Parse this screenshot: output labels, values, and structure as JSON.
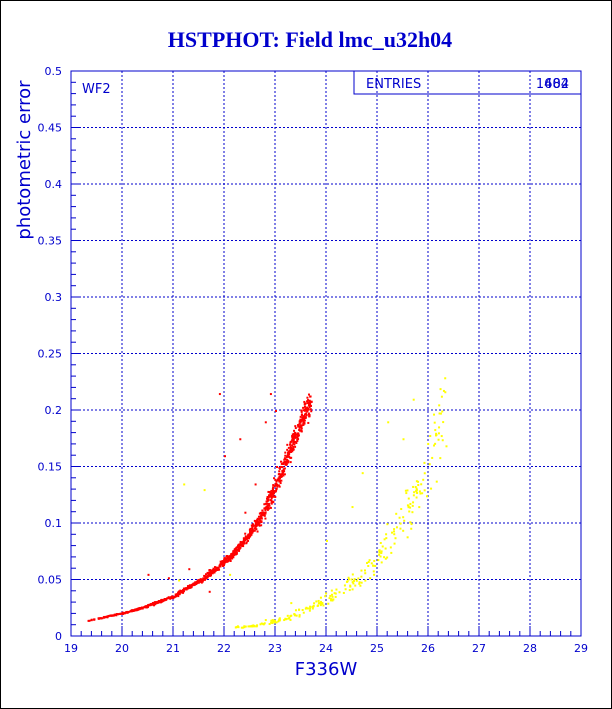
{
  "chart_data": {
    "type": "scatter",
    "title": "HSTPHOT: Field lmc_u32h04",
    "xlabel": "F336W",
    "ylabel": "photometric error",
    "panel_label": "WF2",
    "stats": {
      "label": "ENTRIES",
      "values": [
        "1482",
        "604"
      ]
    },
    "xlim": [
      19,
      29
    ],
    "ylim": [
      0,
      0.5
    ],
    "xticks": [
      "19",
      "20",
      "21",
      "22",
      "23",
      "24",
      "25",
      "26",
      "27",
      "28",
      "29"
    ],
    "yticks": [
      "0",
      "0.05",
      "0.1",
      "0.15",
      "0.2",
      "0.25",
      "0.3",
      "0.35",
      "0.4",
      "0.45",
      "0.5"
    ],
    "grid": true,
    "colors": {
      "axis": "#0000cc",
      "series_red": "#ff0000",
      "series_yellow": "#ffff00",
      "title": "#0000cc"
    },
    "series": [
      {
        "color": "#ff0000",
        "curve": {
          "x_start": 19.2,
          "x_end": 23.75,
          "y_start": 0.013,
          "y_end": 0.215,
          "shape": "exponential"
        },
        "n_points": 1482,
        "values": [
          [
            19.2,
            0.013
          ],
          [
            19.5,
            0.016
          ],
          [
            19.8,
            0.019
          ],
          [
            20.1,
            0.022
          ],
          [
            20.4,
            0.026
          ],
          [
            20.7,
            0.031
          ],
          [
            21.0,
            0.036
          ],
          [
            21.3,
            0.044
          ],
          [
            21.6,
            0.052
          ],
          [
            21.9,
            0.063
          ],
          [
            22.2,
            0.075
          ],
          [
            22.5,
            0.092
          ],
          [
            22.7,
            0.105
          ],
          [
            22.9,
            0.124
          ],
          [
            23.1,
            0.145
          ],
          [
            23.3,
            0.168
          ],
          [
            23.5,
            0.19
          ],
          [
            23.7,
            0.212
          ]
        ],
        "outliers": [
          [
            20.5,
            0.055
          ],
          [
            20.9,
            0.052
          ],
          [
            21.3,
            0.06
          ],
          [
            21.5,
            0.05
          ],
          [
            21.9,
            0.215
          ],
          [
            22.0,
            0.16
          ],
          [
            22.3,
            0.175
          ],
          [
            22.6,
            0.135
          ],
          [
            22.8,
            0.19
          ],
          [
            22.9,
            0.215
          ],
          [
            23.0,
            0.2
          ],
          [
            21.7,
            0.04
          ],
          [
            22.4,
            0.11
          ]
        ]
      },
      {
        "color": "#ffff00",
        "curve": {
          "x_start": 22.2,
          "x_end": 26.35,
          "y_start": 0.008,
          "y_end": 0.21,
          "shape": "exponential"
        },
        "n_points": 604,
        "values": [
          [
            22.2,
            0.008
          ],
          [
            22.6,
            0.01
          ],
          [
            23.0,
            0.014
          ],
          [
            23.4,
            0.02
          ],
          [
            23.8,
            0.028
          ],
          [
            24.2,
            0.038
          ],
          [
            24.6,
            0.052
          ],
          [
            25.0,
            0.07
          ],
          [
            25.3,
            0.09
          ],
          [
            25.6,
            0.115
          ],
          [
            25.9,
            0.14
          ],
          [
            26.1,
            0.165
          ],
          [
            26.35,
            0.21
          ]
        ],
        "outliers": [
          [
            21.2,
            0.135
          ],
          [
            21.6,
            0.13
          ],
          [
            22.1,
            0.055
          ],
          [
            21.1,
            0.05
          ],
          [
            25.7,
            0.21
          ],
          [
            25.2,
            0.19
          ],
          [
            24.7,
            0.145
          ],
          [
            25.5,
            0.175
          ],
          [
            26.2,
            0.205
          ],
          [
            24.5,
            0.115
          ],
          [
            24.0,
            0.085
          ],
          [
            23.3,
            0.03
          ],
          [
            22.8,
            0.015
          ]
        ]
      }
    ]
  }
}
